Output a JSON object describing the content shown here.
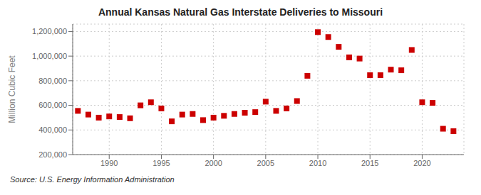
{
  "chart_data": {
    "type": "scatter",
    "title": "Annual Kansas Natural Gas Interstate Deliveries to Missouri",
    "y_label": "Million Cubic Feet",
    "annotation": "Source: U.S. Energy Information Administration",
    "x": [
      1987,
      1988,
      1989,
      1990,
      1991,
      1992,
      1993,
      1994,
      1995,
      1996,
      1997,
      1998,
      1999,
      2000,
      2001,
      2002,
      2003,
      2004,
      2005,
      2006,
      2007,
      2008,
      2009,
      2010,
      2011,
      2012,
      2013,
      2014,
      2015,
      2016,
      2017,
      2018,
      2019,
      2020,
      2021,
      2022,
      2023
    ],
    "values": [
      555000,
      525000,
      500000,
      510000,
      505000,
      495000,
      600000,
      625000,
      575000,
      470000,
      525000,
      530000,
      480000,
      500000,
      515000,
      530000,
      540000,
      545000,
      630000,
      555000,
      575000,
      635000,
      840000,
      1195000,
      1155000,
      1075000,
      990000,
      980000,
      845000,
      845000,
      890000,
      885000,
      1050000,
      625000,
      620000,
      410000,
      390000
    ],
    "color": "#cc0000",
    "marker": "square",
    "xlim": [
      1986.5,
      2024
    ],
    "xticks": [
      1990,
      1995,
      2000,
      2005,
      2010,
      2015,
      2020
    ],
    "ylim": [
      200000,
      1260000
    ],
    "yticks": [
      {
        "value": 200000,
        "label": "200,000"
      },
      {
        "value": 400000,
        "label": "400,000"
      },
      {
        "value": 600000,
        "label": "600,000"
      },
      {
        "value": 800000,
        "label": "800,000"
      },
      {
        "value": 1000000,
        "label": "1,000,000"
      },
      {
        "value": 1200000,
        "label": "1,200,000"
      }
    ],
    "grid": true
  }
}
